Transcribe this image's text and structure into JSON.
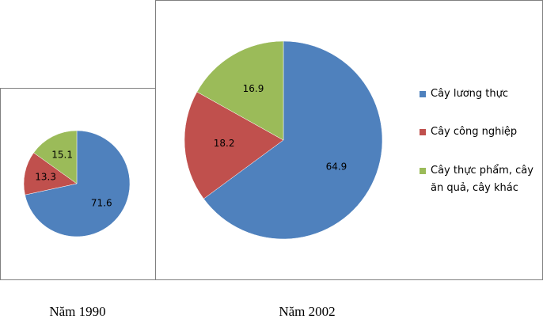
{
  "chart_data": [
    {
      "type": "pie",
      "title": "Năm 1990",
      "values": [
        71.6,
        13.3,
        15.1
      ],
      "colors": [
        "#4f81bd",
        "#c0504d",
        "#9bbb59"
      ]
    },
    {
      "type": "pie",
      "title": "Năm 2002",
      "categories": [
        "Cây lương thực",
        "Cây công nghiệp",
        "Cây thực phẩm, cây ăn quả, cây khác"
      ],
      "values": [
        64.9,
        18.2,
        16.9
      ],
      "colors": [
        "#4f81bd",
        "#c0504d",
        "#9bbb59"
      ]
    }
  ]
}
